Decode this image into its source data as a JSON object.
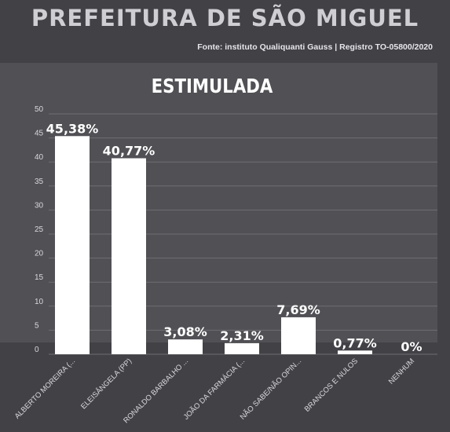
{
  "header": {
    "title": "PREFEITURA DE SÃO MIGUEL",
    "source": "Fonte: instituto Qualiquanti Gauss | Registro TO-05800/2020"
  },
  "chart_data": {
    "type": "bar",
    "title": "ESTIMULADA",
    "categories": [
      "ALBERTO MOREIRA (...",
      "ELEISÂNGELA (PP)",
      "RONALDO BARBALHO ...",
      "JOÃO DA FARMÁCIA (...",
      "NÃO SABE/NÃO OPIN...",
      "BRANCOS E NULOS",
      "NENHUM"
    ],
    "values": [
      45.38,
      40.77,
      3.08,
      2.31,
      7.69,
      0.77,
      0
    ],
    "data_labels": [
      "45,38%",
      "40,77%",
      "3,08%",
      "2,31%",
      "7,69%",
      "0,77%",
      "0%"
    ],
    "yticks": [
      "0",
      "5",
      "10",
      "15",
      "20",
      "25",
      "30",
      "35",
      "40",
      "45",
      "50"
    ],
    "ylim": [
      0,
      50
    ],
    "grid": true,
    "colors": {
      "bar": "#ffffff",
      "grid": "#6e6e73",
      "text": "#ffffff",
      "tick": "#d8d8dc"
    }
  }
}
